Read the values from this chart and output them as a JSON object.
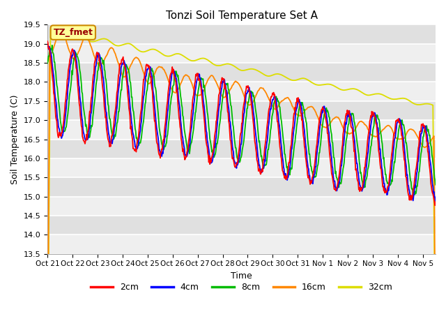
{
  "title": "Tonzi Soil Temperature Set A",
  "xlabel": "Time",
  "ylabel": "Soil Temperature (C)",
  "ylim": [
    13.5,
    19.5
  ],
  "colors": {
    "2cm": "#ff0000",
    "4cm": "#0000ff",
    "8cm": "#00bb00",
    "16cm": "#ff8800",
    "32cm": "#dddd00"
  },
  "legend_label": "TZ_fmet",
  "legend_box_facecolor": "#ffff99",
  "legend_box_edgecolor": "#cc8800",
  "bg_color": "#e0e0e0",
  "grid_color": "#ffffff",
  "xtick_labels": [
    "Oct 21",
    "Oct 22",
    "Oct 23",
    "Oct 24",
    "Oct 25",
    "Oct 26",
    "Oct 27",
    "Oct 28",
    "Oct 29",
    "Oct 30",
    "Oct 31",
    "Nov 1",
    "Nov 2",
    "Nov 3",
    "Nov 4",
    "Nov 5"
  ],
  "n_days": 15.5,
  "points_per_day": 48
}
